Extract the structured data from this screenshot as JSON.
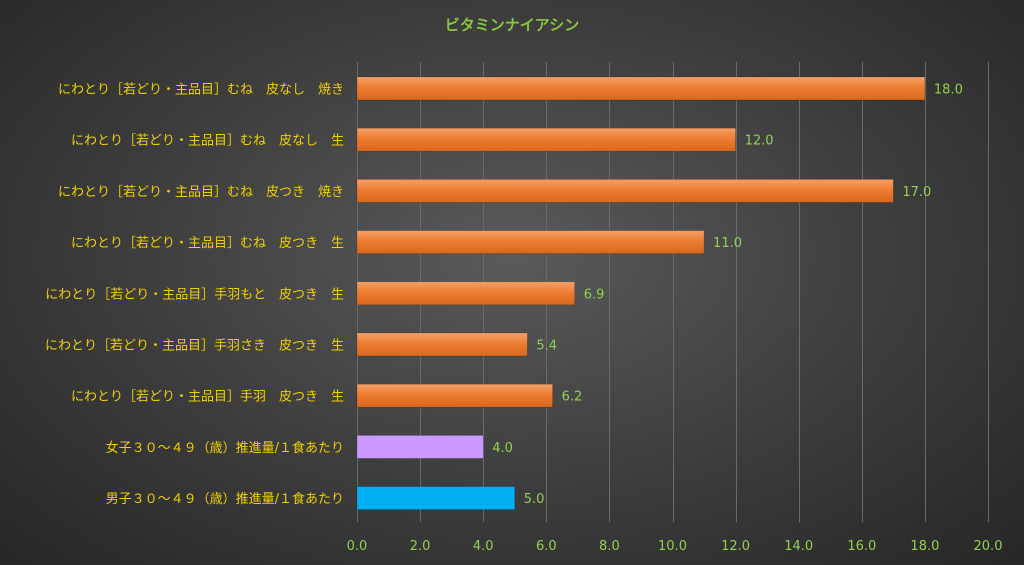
{
  "chart_data": {
    "type": "bar",
    "orientation": "horizontal",
    "title": "ビタミンナイアシン",
    "categories": [
      "にわとり［若どり・主品目］むね　皮なし　焼き",
      "にわとり［若どり・主品目］むね　皮なし　生",
      "にわとり［若どり・主品目］むね　皮つき　焼き",
      "にわとり［若どり・主品目］むね　皮つき　生",
      "にわとり［若どり・主品目］手羽もと　皮つき　生",
      "にわとり［若どり・主品目］手羽さき　皮つき　生",
      "にわとり［若どり・主品目］手羽　皮つき　生",
      "女子３０～４９（歳）推進量/１食あたり",
      "男子３０～４９（歳）推進量/１食あたり"
    ],
    "values": [
      18.0,
      12.0,
      17.0,
      11.0,
      6.9,
      5.4,
      6.2,
      4.0,
      5.0
    ],
    "data_labels": [
      "18.0",
      "12.0",
      "17.0",
      "11.0",
      "6.9",
      "5.4",
      "6.2",
      "4.0",
      "5.0"
    ],
    "bar_colors": [
      "#ED7D31",
      "#ED7D31",
      "#ED7D31",
      "#ED7D31",
      "#ED7D31",
      "#ED7D31",
      "#ED7D31",
      "#CC99FF",
      "#00B0F0"
    ],
    "xlim": [
      0,
      20
    ],
    "xticks": [
      "0.0",
      "2.0",
      "4.0",
      "6.0",
      "8.0",
      "10.0",
      "12.0",
      "14.0",
      "16.0",
      "18.0",
      "20.0"
    ],
    "grid": true,
    "legend": "none"
  },
  "colors": {
    "title": "#8CC63F",
    "category_label": "#F0D000",
    "value_label": "#92D050",
    "tick_label": "#92D050",
    "grid": "#6a6a6a"
  }
}
